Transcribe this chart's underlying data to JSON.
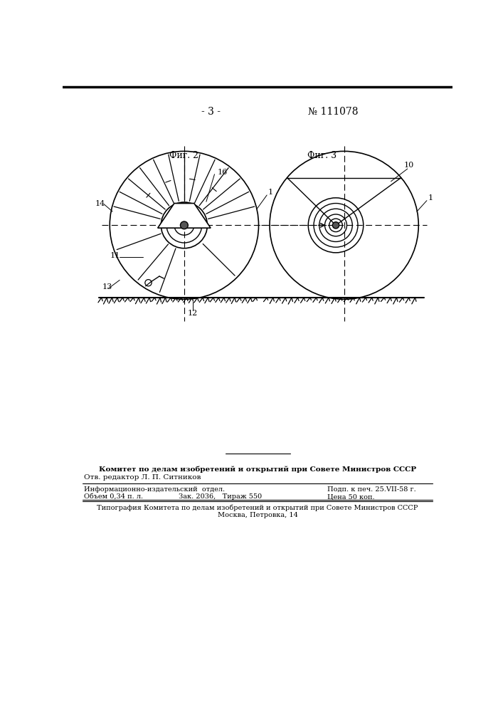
{
  "page_number": "- 3 -",
  "patent_number": "№ 111078",
  "fig2_label": "Фиг. 2",
  "fig3_label": "Фиг. 3",
  "footer_bold": "Комитет по делам изобретений и открытий при Совете Министров СССР",
  "footer_editor": "Отв. редактор Л. П. Ситников",
  "footer_info_l1": "Информационно-издательский  отдел.",
  "footer_info_l2": "Объем 0,34 п. л.                Зак. 2036,   Тираж 550",
  "footer_info_r1": "Подп. к печ. 25.VII-58 г.",
  "footer_info_r2": "Цена 50 коп.",
  "footer_typo": "Типография Комитета по делам изобретений и открытий при Совете Министров СССР",
  "footer_addr": "Москва, Петровка, 14",
  "bg_color": "#ffffff",
  "line_color": "#000000"
}
